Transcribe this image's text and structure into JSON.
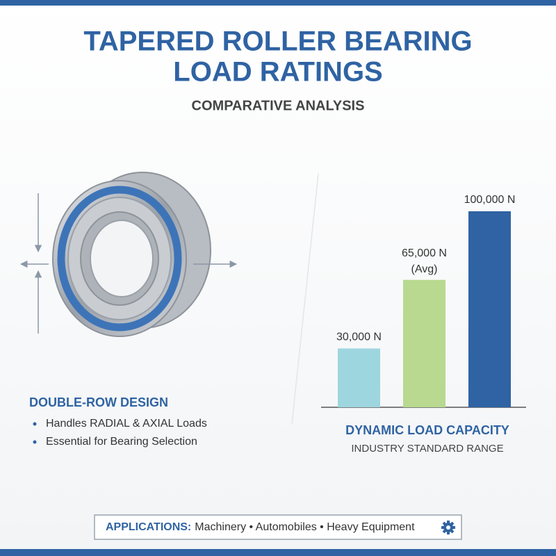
{
  "header": {
    "title_lines": [
      "TAPERED ROLLER BEARING",
      "LOAD RATINGS"
    ],
    "subtitle": "COMPARATIVE ANALYSIS"
  },
  "design": {
    "heading": "DOUBLE-ROW DESIGN",
    "bullets": [
      "Handles RADIAL & AXIAL Loads",
      "Essential for Bearing Selection"
    ]
  },
  "chart_data": {
    "type": "bar",
    "title": "DYNAMIC LOAD CAPACITY",
    "subtitle": "INDUSTRY STANDARD RANGE",
    "categories": [
      null,
      null,
      null
    ],
    "values": [
      30000,
      65000,
      100000
    ],
    "value_labels": [
      "30,000 N",
      "65,000 N",
      "100,000 N"
    ],
    "annotation": "(Avg)",
    "colors": [
      "#9ed6df",
      "#b8d98f",
      "#2f63a3"
    ]
  },
  "footer": {
    "label": "APPLICATIONS:",
    "items": "Machinery • Automobiles • Heavy Equipment"
  }
}
